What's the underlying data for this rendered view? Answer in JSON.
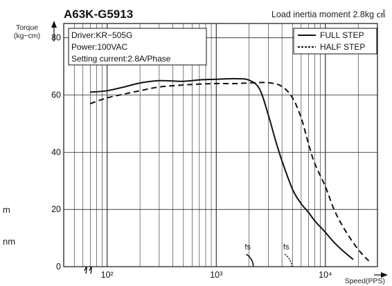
{
  "side_fragments": [
    "m",
    "nm"
  ],
  "chart_data": {
    "type": "line",
    "title": "A63K-G5913",
    "subtitle": "Load inertia moment 2.8kg ㎠",
    "xlabel": "Speed(PPS)",
    "ylabel": "Torque\n(kg−cm)",
    "x_scale": "log",
    "xlim": [
      40,
      30000
    ],
    "ylim": [
      0,
      85
    ],
    "x_ticks": [
      {
        "value": 100,
        "label": "10²"
      },
      {
        "value": 1000,
        "label": "10³"
      },
      {
        "value": 10000,
        "label": "10⁴"
      }
    ],
    "y_ticks": [
      0,
      20,
      40,
      60,
      80
    ],
    "grid": true,
    "legend_position": "top-right",
    "info_box": [
      "Driver:KR−505G",
      "Power:100VAC",
      "Setting current:2.8A/Phase"
    ],
    "series": [
      {
        "name": "FULL STEP",
        "style": "solid",
        "x": [
          70,
          100,
          150,
          200,
          300,
          500,
          700,
          1000,
          1500,
          2000,
          2500,
          3000,
          3500,
          4000,
          5000,
          6000,
          7000,
          8000,
          10000,
          12000,
          15000,
          18000
        ],
        "y": [
          61,
          61.5,
          63,
          64.2,
          65,
          64.8,
          65.3,
          65.5,
          65.7,
          65.2,
          62,
          53,
          44,
          37,
          27,
          22,
          19,
          16,
          12,
          8.5,
          5,
          2.5
        ]
      },
      {
        "name": "HALF STEP",
        "style": "dashed",
        "x": [
          70,
          100,
          150,
          200,
          300,
          500,
          700,
          1000,
          1500,
          2000,
          3000,
          4000,
          5000,
          6000,
          7000,
          8000,
          10000,
          12000,
          15000,
          20000,
          25000
        ],
        "y": [
          57,
          59,
          60.5,
          61.5,
          62.8,
          63.5,
          63.8,
          64,
          64,
          64.2,
          64.3,
          63,
          59,
          52,
          43,
          36,
          28,
          20,
          13,
          6,
          2
        ]
      }
    ],
    "annotations": [
      {
        "text": "fs",
        "x": 2000
      },
      {
        "text": "fs",
        "x": 4500
      }
    ]
  }
}
